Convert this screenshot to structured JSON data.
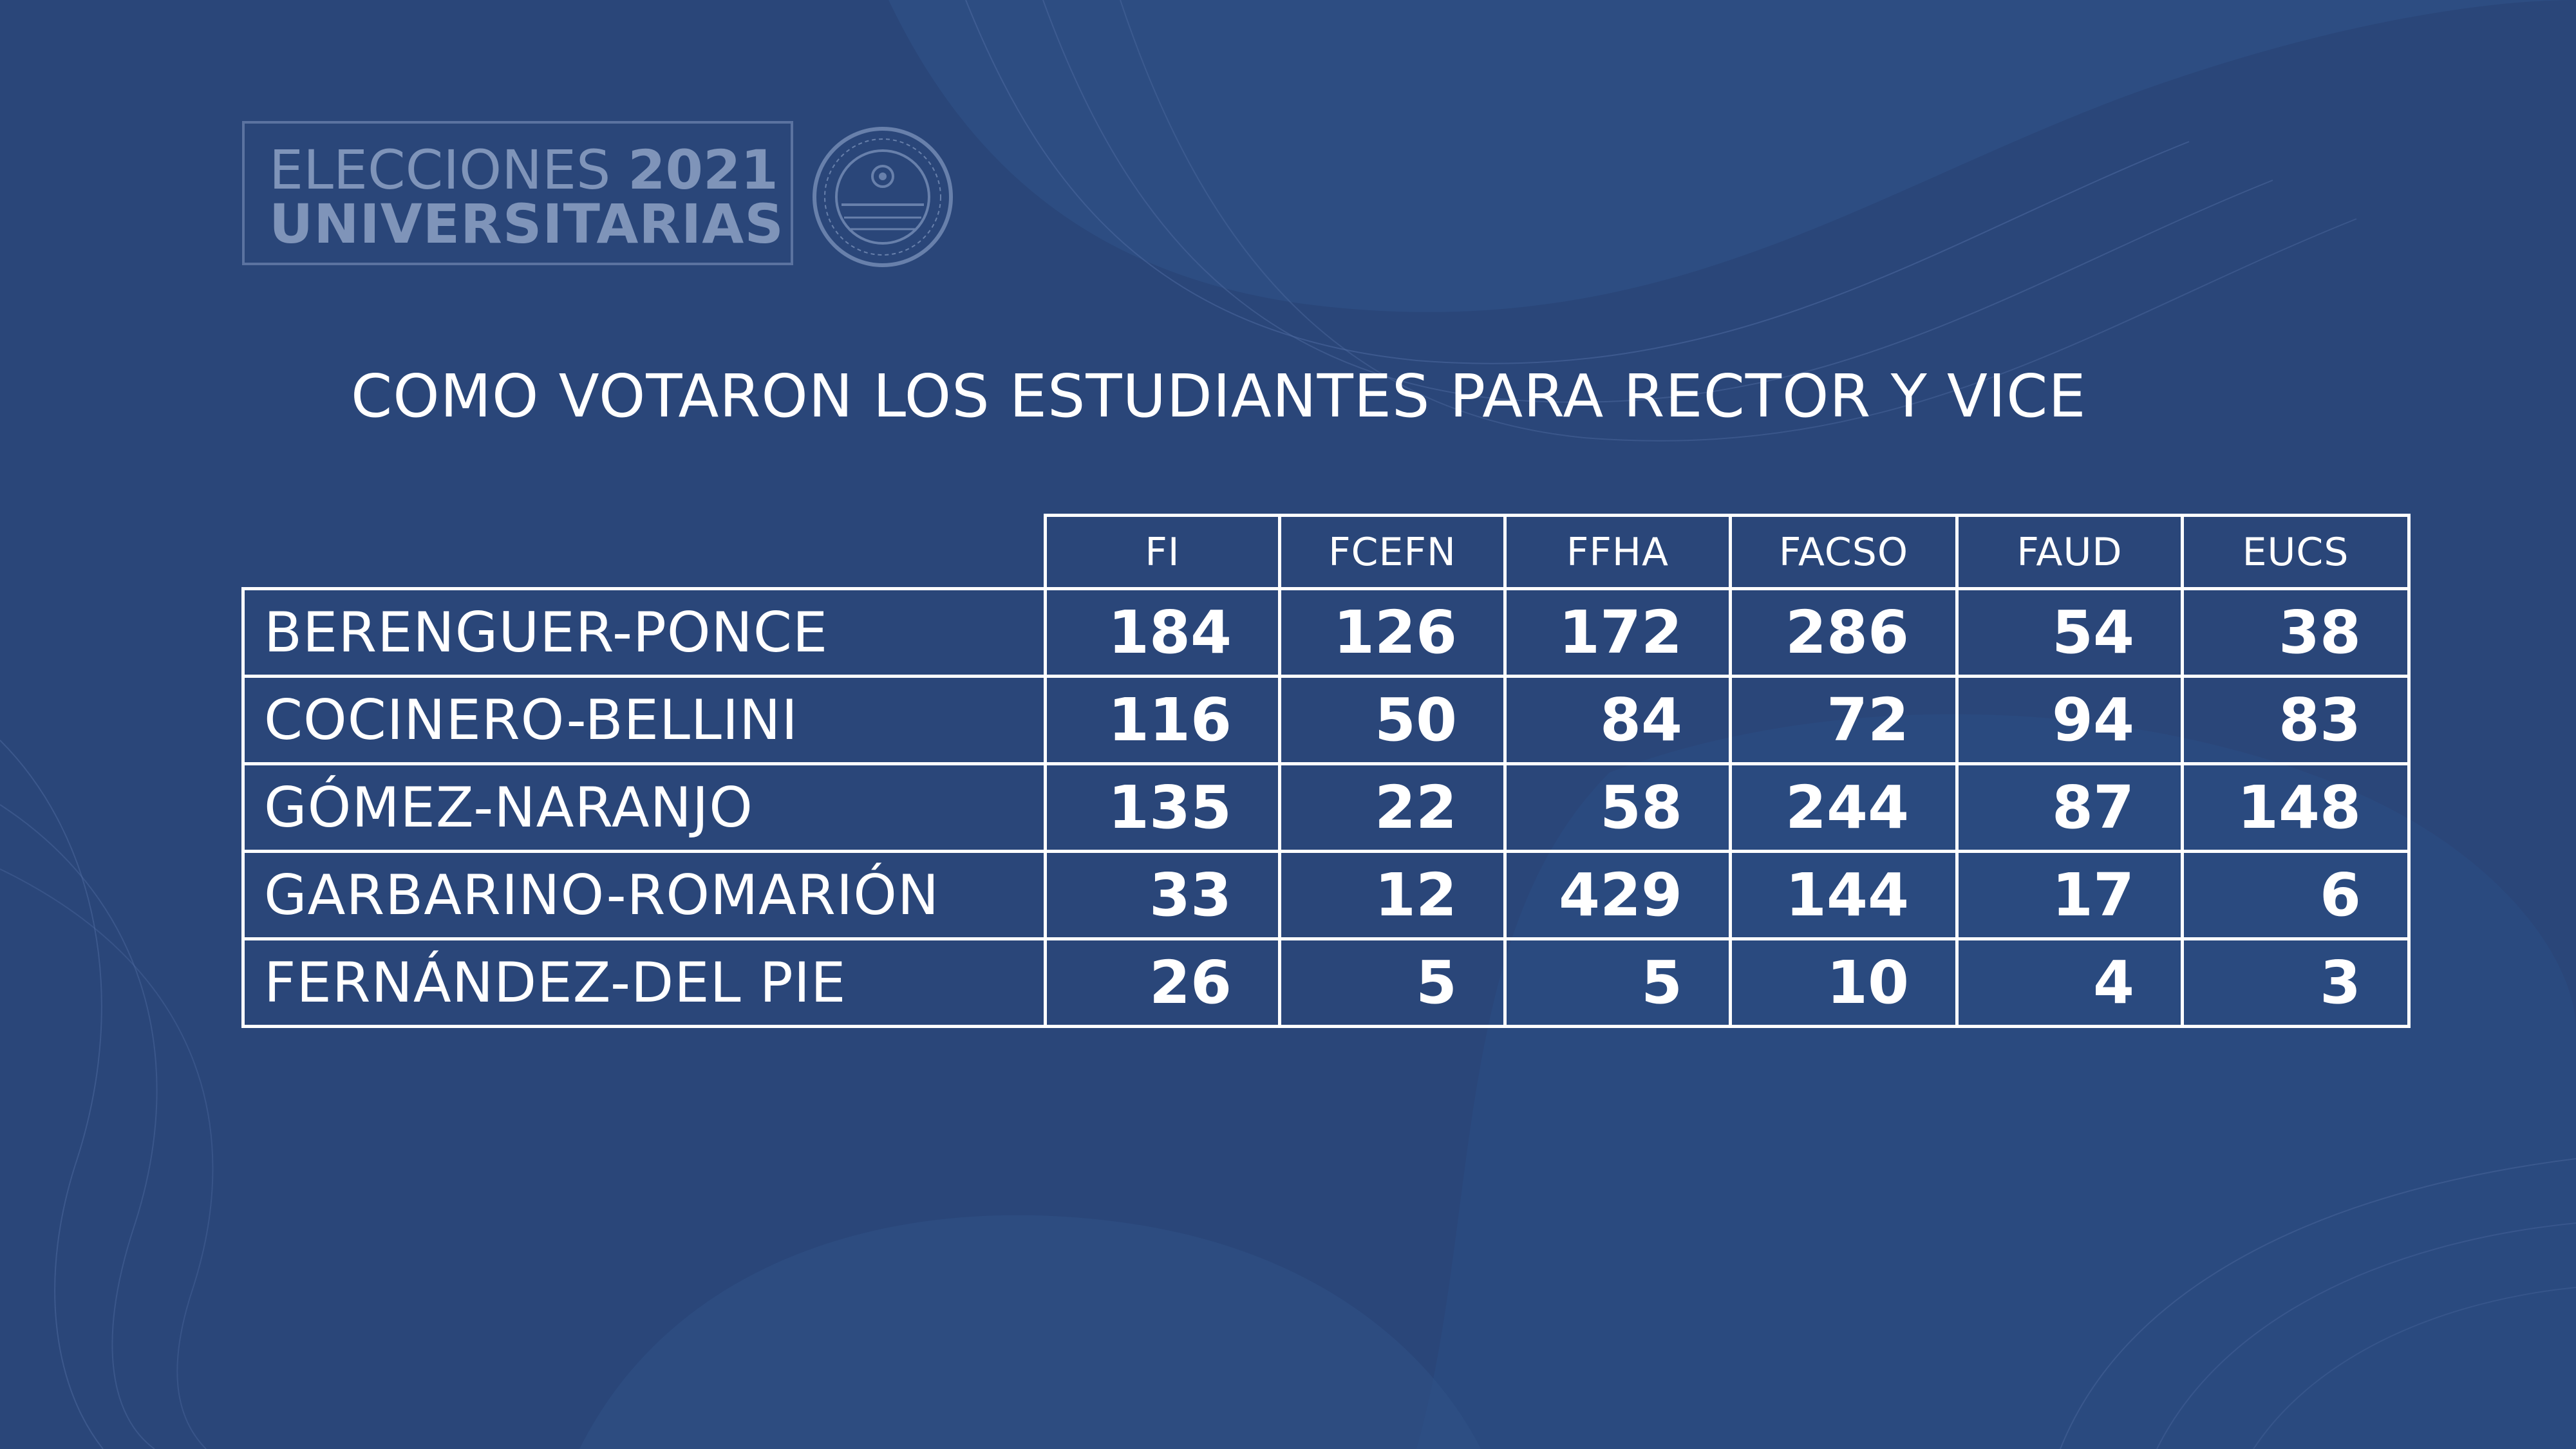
{
  "logo": {
    "line1_word": "ELECCIONES",
    "line1_year": "2021",
    "line2": "UNIVERSITARIAS",
    "seal_icon": "university-seal-icon"
  },
  "title": "COMO VOTARON LOS ESTUDIANTES PARA RECTOR Y VICE",
  "table": {
    "columns": [
      "FI",
      "FCEFN",
      "FFHA",
      "FACSO",
      "FAUD",
      "EUCS"
    ],
    "rows": [
      {
        "name": "BERENGUER-PONCE",
        "values": [
          "184",
          "126",
          "172",
          "286",
          "54",
          "38"
        ]
      },
      {
        "name": "COCINERO-BELLINI",
        "values": [
          "116",
          "50",
          "84",
          "72",
          "94",
          "83"
        ]
      },
      {
        "name": "GÓMEZ-NARANJO",
        "values": [
          "135",
          "22",
          "58",
          "244",
          "87",
          "148"
        ]
      },
      {
        "name": "GARBARINO-ROMARIÓN",
        "values": [
          "33",
          "12",
          "429",
          "144",
          "17",
          "6"
        ]
      },
      {
        "name": "FERNÁNDEZ-DEL PIE",
        "values": [
          "26",
          "5",
          "5",
          "10",
          "4",
          "3"
        ]
      }
    ]
  },
  "colors": {
    "background": "#2a4679",
    "text": "#ffffff",
    "logo_text": "#7f94b9"
  }
}
